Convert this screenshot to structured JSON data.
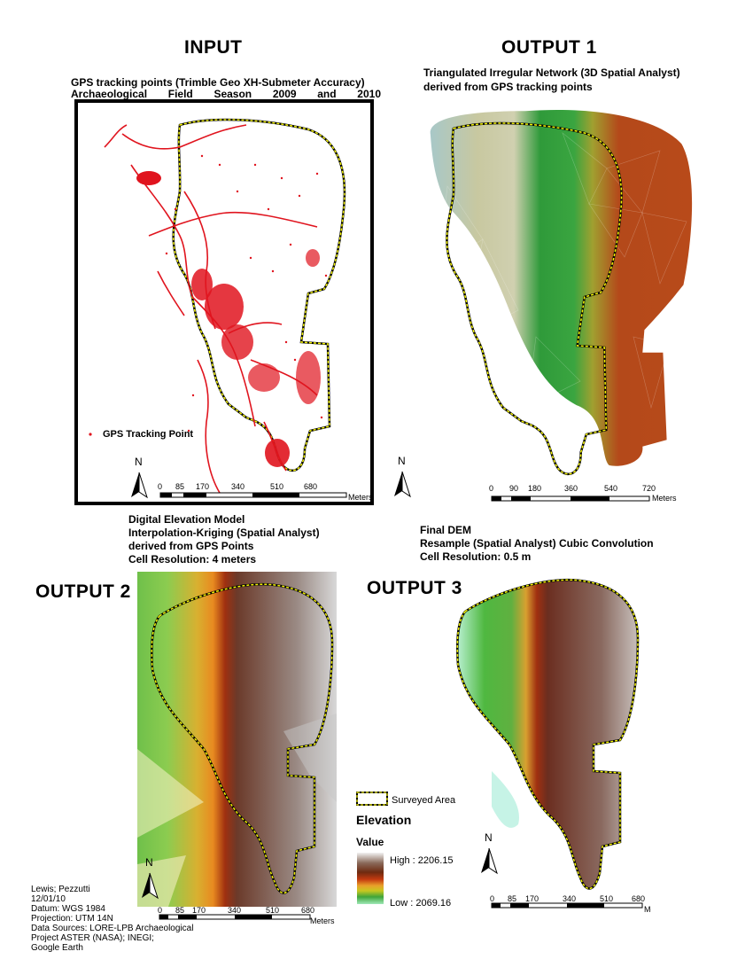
{
  "input": {
    "title": "INPUT",
    "subtitle_line1": "GPS tracking points (Trimble Geo XH-Submeter Accuracy)",
    "subtitle_line2_words": [
      "Archaeological",
      "Field",
      "Season",
      "2009",
      "and",
      "2010"
    ],
    "legend_label": "GPS Tracking Point",
    "scale_ticks": [
      "0",
      "85",
      "170",
      "340",
      "510",
      "680"
    ],
    "scale_unit": "Meters"
  },
  "output1": {
    "title": "OUTPUT 1",
    "subtitle_line1": "Triangulated Irregular Network (3D Spatial Analyst)",
    "subtitle_line2": "derived from GPS tracking points",
    "scale_ticks": [
      "0",
      "90",
      "180",
      "360",
      "540",
      "720"
    ],
    "scale_unit": "Meters"
  },
  "output2": {
    "title": "OUTPUT 2",
    "subtitle_lines": [
      "Digital Elevation Model",
      "Interpolation-Kriging (Spatial Analyst)",
      "derived from GPS Points",
      "Cell Resolution: 4 meters"
    ],
    "scale_ticks": [
      "0",
      "85",
      "170",
      "340",
      "510",
      "680"
    ],
    "scale_unit": "Meters"
  },
  "output3": {
    "title": "OUTPUT 3",
    "subtitle_lines": [
      "Final DEM",
      "Resample (Spatial Analyst) Cubic Convolution",
      "Cell Resolution: 0.5 m"
    ],
    "scale_ticks": [
      "0",
      "85",
      "170",
      "340",
      "510",
      "680"
    ],
    "scale_unit": "Meters"
  },
  "north_label": "N",
  "legend": {
    "surveyed_area": "Surveyed Area",
    "elevation_title": "Elevation",
    "value_title": "Value",
    "high_label": "High : 2206.15",
    "low_label": "Low : 2069.16",
    "gradient_colors": [
      "#f2f2f2",
      "#8a6a5a",
      "#6e2a10",
      "#c33a10",
      "#e9a02a",
      "#c8c820",
      "#3fa53a",
      "#9fe8b8"
    ]
  },
  "credits": [
    "Lewis; Pezzutti",
    "12/01/10",
    "Datum: WGS 1984",
    "Projection: UTM 14N",
    "Data Sources: LORE-LPB Archaeological",
    "Project ASTER (NASA); INEGI;",
    "Google Earth"
  ],
  "colors": {
    "boundary": "#f2f200",
    "gps_point": "#e0141e",
    "tin_green": "#2f8f2f",
    "tin_brown": "#b4491a",
    "dem_brown": "#6b3a2a"
  }
}
